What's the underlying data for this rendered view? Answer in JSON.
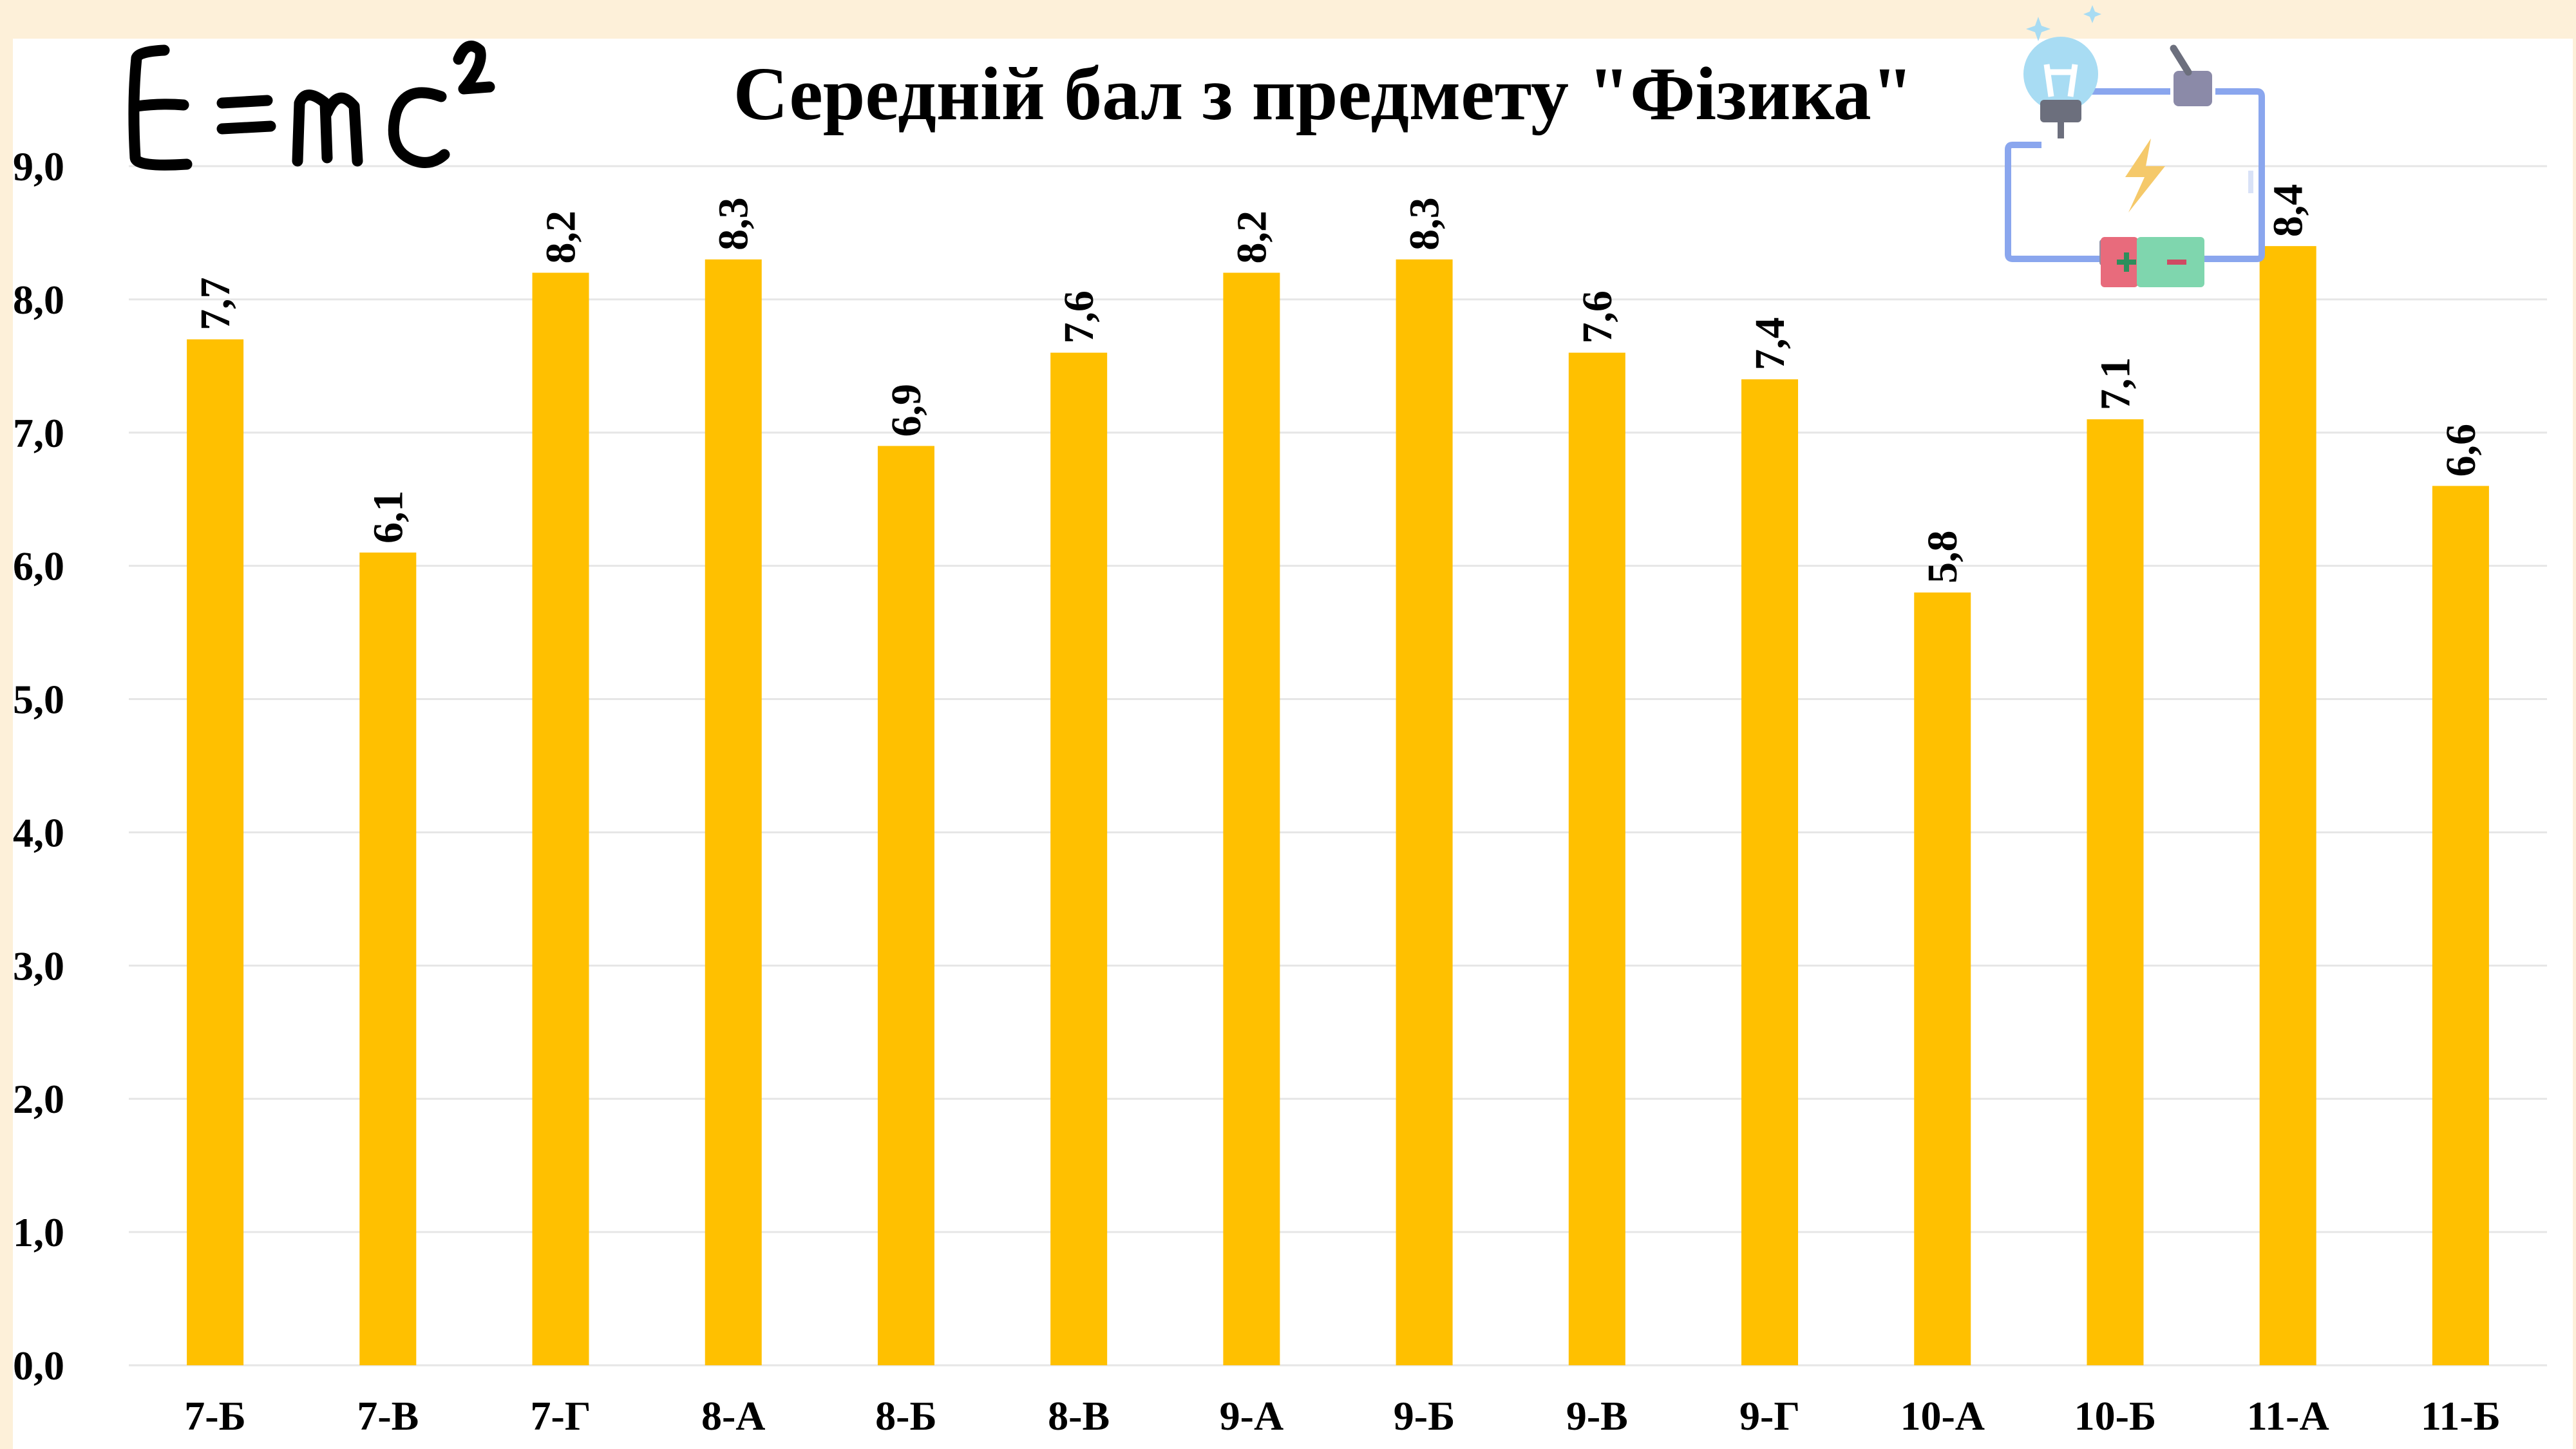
{
  "chart_data": {
    "type": "bar",
    "title": "Середній бал з предмету \"Фізика\"",
    "categories": [
      "7-Б",
      "7-В",
      "7-Г",
      "8-А",
      "8-Б",
      "8-В",
      "9-А",
      "9-Б",
      "9-В",
      "9-Г",
      "10-А",
      "10-Б",
      "11-А",
      "11-Б"
    ],
    "values": [
      7.7,
      6.1,
      8.2,
      8.3,
      6.9,
      7.6,
      8.2,
      8.3,
      7.6,
      7.4,
      5.8,
      7.1,
      8.4,
      6.6
    ],
    "value_labels": [
      "7,7",
      "6,1",
      "8,2",
      "8,3",
      "6,9",
      "7,6",
      "8,2",
      "8,3",
      "7,6",
      "7,4",
      "5,8",
      "7,1",
      "8,4",
      "6,6"
    ],
    "y_ticks": [
      "0,0",
      "1,0",
      "2,0",
      "3,0",
      "4,0",
      "5,0",
      "6,0",
      "7,0",
      "8,0",
      "9,0"
    ],
    "ylim": [
      0,
      9
    ],
    "xlabel": "",
    "ylabel": "",
    "grid": true,
    "legend": "none",
    "bar_color": "#ffc000"
  },
  "decor": {
    "formula": "E=mc²",
    "illustration": "circuit-with-lightbulb-icon"
  }
}
